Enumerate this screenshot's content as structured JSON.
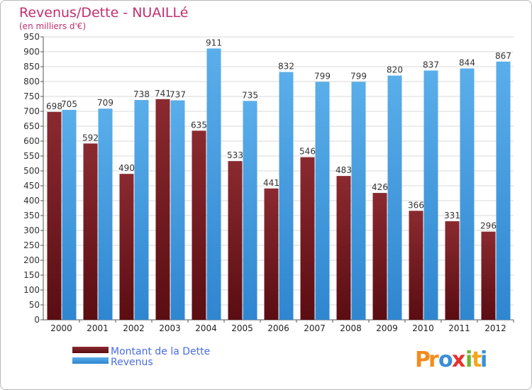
{
  "chart_data": {
    "type": "bar",
    "title": "Revenus/Dette - NUAILLé",
    "subtitle": "(en milliers d'€)",
    "categories": [
      "2000",
      "2001",
      "2002",
      "2003",
      "2004",
      "2005",
      "2006",
      "2007",
      "2008",
      "2009",
      "2010",
      "2011",
      "2012"
    ],
    "series": [
      {
        "name": "Montant de la Dette",
        "color": "#7a1f26",
        "values": [
          698,
          592,
          490,
          741,
          635,
          533,
          441,
          546,
          483,
          426,
          366,
          331,
          296
        ]
      },
      {
        "name": "Revenus",
        "color": "#4fa3e6",
        "values": [
          705,
          709,
          738,
          737,
          911,
          735,
          832,
          799,
          799,
          820,
          837,
          844,
          867
        ]
      }
    ],
    "ylim": [
      0,
      950
    ],
    "ytick_step": 50,
    "grid": true,
    "legend_position": "bottom-left"
  },
  "logo": {
    "text": "Proxiti",
    "letters": [
      {
        "ch": "P",
        "color": "#f28c1e"
      },
      {
        "ch": "r",
        "color": "#f28c1e"
      },
      {
        "ch": "o",
        "color": "#3a8fd6"
      },
      {
        "ch": "x",
        "color": "#e8312e"
      },
      {
        "ch": "i",
        "color": "#69b62f"
      },
      {
        "ch": "t",
        "color": "#f2a71e"
      },
      {
        "ch": "i",
        "color": "#3a8fd6"
      }
    ]
  }
}
